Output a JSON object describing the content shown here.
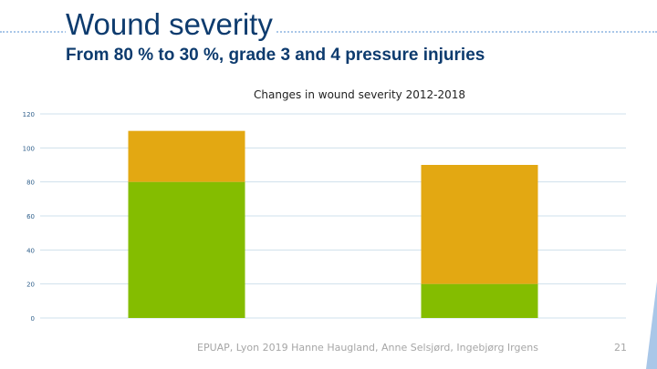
{
  "slide": {
    "title": "Wound severity",
    "subtitle": "From 80 % to 30 %, grade 3 and 4 pressure injuries",
    "footer": "EPUAP, Lyon 2019 Hanne Haugland, Anne Selsjørd, Ingebjørg Irgens",
    "page_number": "21"
  },
  "colors": {
    "title": "#0d3b6e",
    "gridline": "#cfe0ec",
    "axis_text": "#2e5e8a",
    "rule": "#a9c7e8"
  },
  "chart_data": {
    "type": "bar",
    "stacked": true,
    "title": "Changes in wound severity 2012-2018",
    "categories": [
      "",
      ""
    ],
    "series": [
      {
        "color": "#84bd00",
        "values": [
          80,
          20
        ]
      },
      {
        "color": "#e3a812",
        "values": [
          30,
          70
        ]
      }
    ],
    "ylim": [
      0,
      120
    ],
    "yticks": [
      0,
      20,
      40,
      60,
      80,
      100,
      120
    ],
    "grid": true,
    "legend": "none"
  }
}
